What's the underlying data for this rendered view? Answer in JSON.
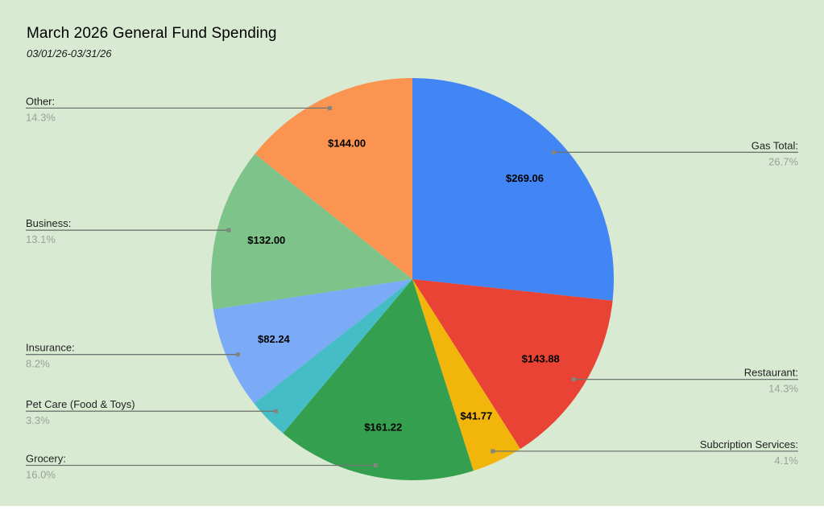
{
  "title": "March 2026 General Fund Spending",
  "subtitle": "03/01/26-03/31/26",
  "colors": {
    "background": "#D9EAD3",
    "leader_line": "#6f7570",
    "category_text": "#1f1f1f",
    "percent_text": "#9a9f98",
    "value_text": "#000000"
  },
  "chart_data": {
    "type": "pie",
    "title": "March 2026 General Fund Spending",
    "subtitle": "03/01/26-03/31/26",
    "start_angle_deg": 0,
    "direction": "clockwise",
    "legend_position": "labeled",
    "slices": [
      {
        "label": "Gas Total:",
        "percent": 26.7,
        "percent_label": "26.7%",
        "value_label": "$269.06",
        "color": "#4285F4"
      },
      {
        "label": "Restaurant:",
        "percent": 14.3,
        "percent_label": "14.3%",
        "value_label": "$143.88",
        "color": "#E84335"
      },
      {
        "label": "Subcription Services:",
        "percent": 4.1,
        "percent_label": "4.1%",
        "value_label": "$41.77",
        "color": "#F2B50C"
      },
      {
        "label": "Grocery:",
        "percent": 16.0,
        "percent_label": "16.0%",
        "value_label": "$161.22",
        "color": "#34A04F"
      },
      {
        "label": "Pet Care (Food & Toys)",
        "percent": 3.3,
        "percent_label": "3.3%",
        "value_label": null,
        "color": "#46BDC6"
      },
      {
        "label": "Insurance:",
        "percent": 8.2,
        "percent_label": "8.2%",
        "value_label": "$82.24",
        "color": "#7BAAF7"
      },
      {
        "label": "Business:",
        "percent": 13.1,
        "percent_label": "13.1%",
        "value_label": "$132.00",
        "color": "#7DC38A"
      },
      {
        "label": "Other:",
        "percent": 14.3,
        "percent_label": "14.3%",
        "value_label": "$144.00",
        "color": "#FA9450"
      }
    ]
  }
}
